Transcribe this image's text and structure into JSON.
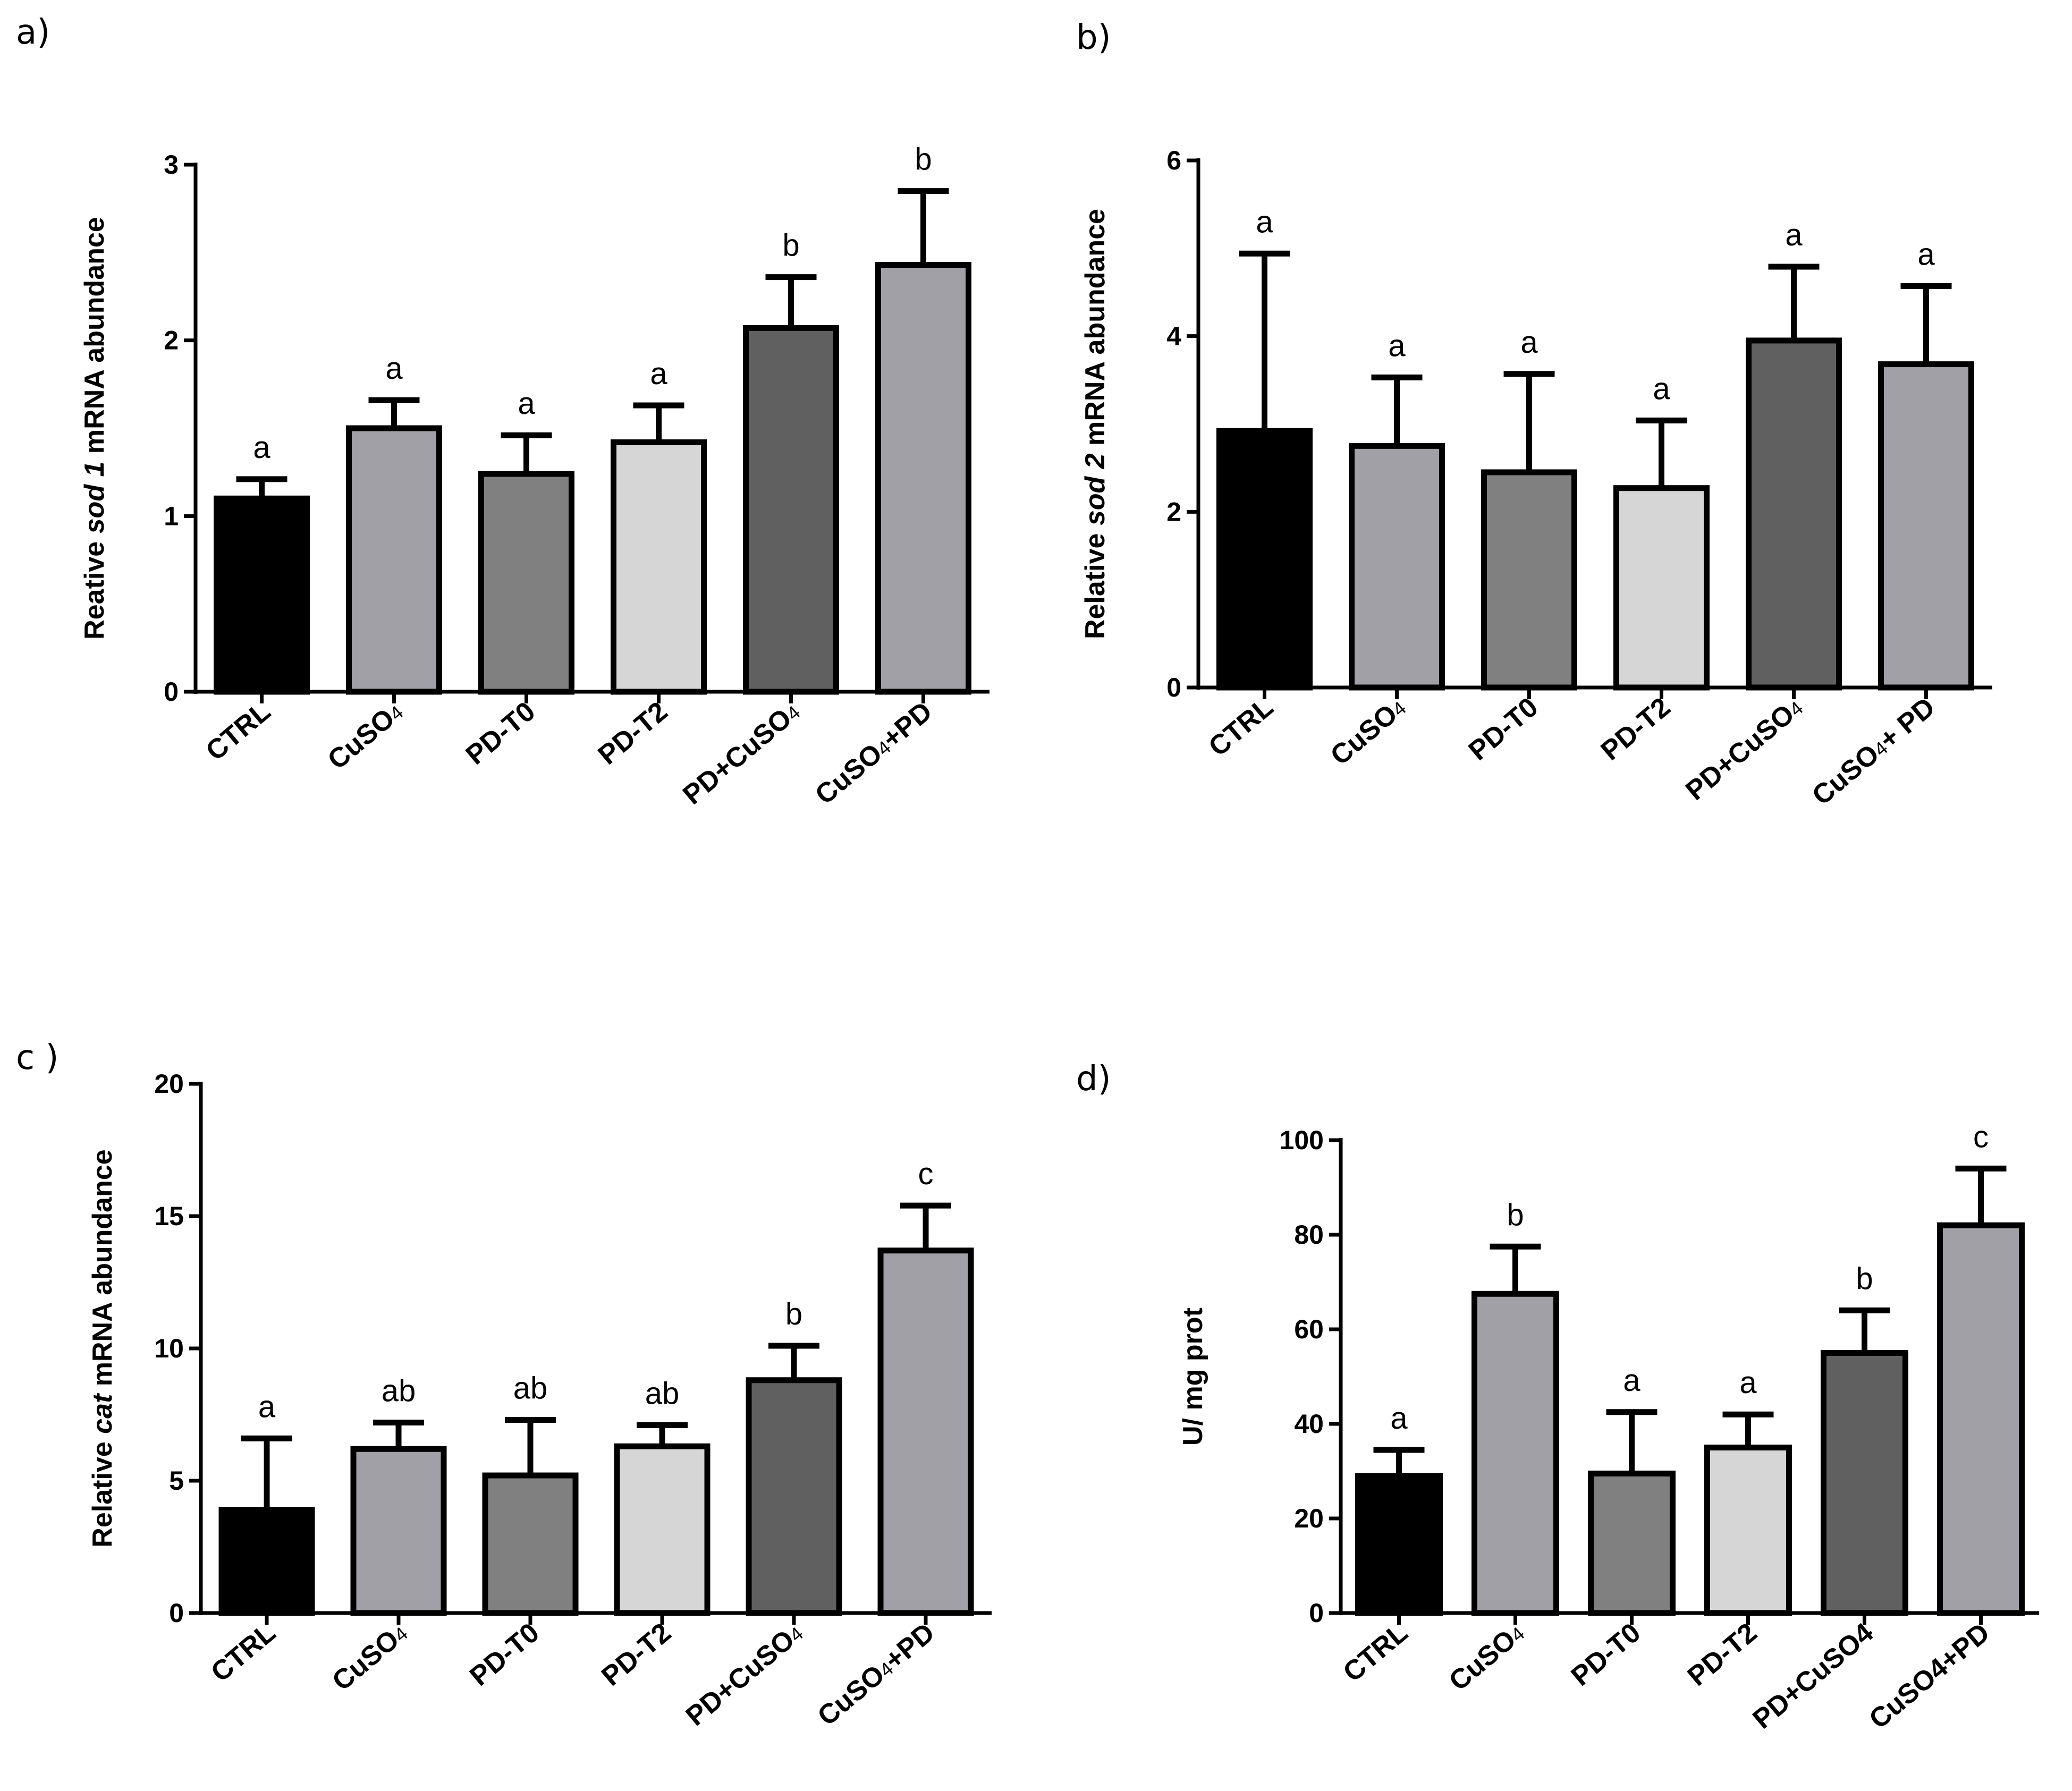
{
  "chart_data": [
    {
      "panel": "a)",
      "type": "bar",
      "ylabel_pre": "Reative ",
      "ylabel_gene": "sod 1",
      "ylabel_post": " mRNA abundance",
      "ylim": [
        0,
        3
      ],
      "yticks": [
        "0",
        "1",
        "2",
        "3"
      ],
      "categories": [
        {
          "base": "CTRL",
          "sub": "",
          "rest": ""
        },
        {
          "base": "CuSO",
          "sub": "4",
          "rest": ""
        },
        {
          "base": "PD-T0",
          "sub": "",
          "rest": ""
        },
        {
          "base": "PD-T2",
          "sub": "",
          "rest": ""
        },
        {
          "base": "PD+CuSO",
          "sub": "4",
          "rest": ""
        },
        {
          "base": "CuSO",
          "sub": "4",
          "rest": "+PD"
        }
      ],
      "values": [
        1.1,
        1.5,
        1.24,
        1.42,
        2.07,
        2.43
      ],
      "errors": [
        0.11,
        0.16,
        0.22,
        0.21,
        0.29,
        0.42
      ],
      "letters": [
        "a",
        "a",
        "a",
        "a",
        "b",
        "b"
      ]
    },
    {
      "panel": "b)",
      "type": "bar",
      "ylabel_pre": "Relative ",
      "ylabel_gene": "sod 2",
      "ylabel_post": " mRNA abundance",
      "ylim": [
        0,
        6
      ],
      "yticks": [
        "0",
        "2",
        "4",
        "6"
      ],
      "categories": [
        {
          "base": "CTRL",
          "sub": "",
          "rest": ""
        },
        {
          "base": "CuSO",
          "sub": "4",
          "rest": ""
        },
        {
          "base": "PD-T0",
          "sub": "",
          "rest": ""
        },
        {
          "base": "PD-T2",
          "sub": "",
          "rest": ""
        },
        {
          "base": "PD+CuSO",
          "sub": "4",
          "rest": ""
        },
        {
          "base": "CuSO",
          "sub": "4",
          "rest": "+ PD"
        }
      ],
      "values": [
        2.92,
        2.75,
        2.45,
        2.27,
        3.95,
        3.68
      ],
      "errors": [
        2.02,
        0.78,
        1.12,
        0.77,
        0.84,
        0.89
      ],
      "letters": [
        "a",
        "a",
        "a",
        "a",
        "a",
        "a"
      ]
    },
    {
      "panel": "c )",
      "type": "bar",
      "ylabel_pre": "Relative ",
      "ylabel_gene": "cat",
      "ylabel_post": " mRNA abundance",
      "ylim": [
        0,
        20
      ],
      "yticks": [
        "0",
        "5",
        "10",
        "15",
        "20"
      ],
      "categories": [
        {
          "base": "CTRL",
          "sub": "",
          "rest": ""
        },
        {
          "base": "CuSO",
          "sub": "4",
          "rest": ""
        },
        {
          "base": "PD-T0",
          "sub": "",
          "rest": ""
        },
        {
          "base": "PD-T2",
          "sub": "",
          "rest": ""
        },
        {
          "base": "PD+CuSO",
          "sub": "4",
          "rest": ""
        },
        {
          "base": "CuSO",
          "sub": "4",
          "rest": "+PD"
        }
      ],
      "values": [
        3.9,
        6.2,
        5.2,
        6.3,
        8.8,
        13.7
      ],
      "errors": [
        2.7,
        1.0,
        2.1,
        0.8,
        1.3,
        1.7
      ],
      "letters": [
        "a",
        "ab",
        "ab",
        "ab",
        "b",
        "c"
      ]
    },
    {
      "panel": "d)",
      "type": "bar",
      "ylabel_pre": "U/ mg prot",
      "ylabel_gene": "",
      "ylabel_post": "",
      "ylim": [
        0,
        100
      ],
      "yticks": [
        "0",
        "20",
        "40",
        "60",
        "80",
        "100"
      ],
      "categories": [
        {
          "base": "CTRL",
          "sub": "",
          "rest": ""
        },
        {
          "base": "CuSO",
          "sub": "4",
          "rest": ""
        },
        {
          "base": "PD-T0",
          "sub": "",
          "rest": ""
        },
        {
          "base": "PD-T2",
          "sub": "",
          "rest": ""
        },
        {
          "base": "PD+CuSO4",
          "sub": "",
          "rest": ""
        },
        {
          "base": "CuSO4+PD",
          "sub": "",
          "rest": ""
        }
      ],
      "values": [
        29,
        67.5,
        29.5,
        35,
        55,
        82
      ],
      "errors": [
        5.5,
        10,
        13,
        7,
        9,
        12
      ],
      "letters": [
        "a",
        "b",
        "a",
        "a",
        "b",
        "c"
      ]
    }
  ],
  "colors": {
    "bars": [
      "#000000",
      "#a0a0a6",
      "#808080",
      "#d6d6d6",
      "#606060",
      "#a0a0a6"
    ],
    "stroke": "#000000"
  }
}
